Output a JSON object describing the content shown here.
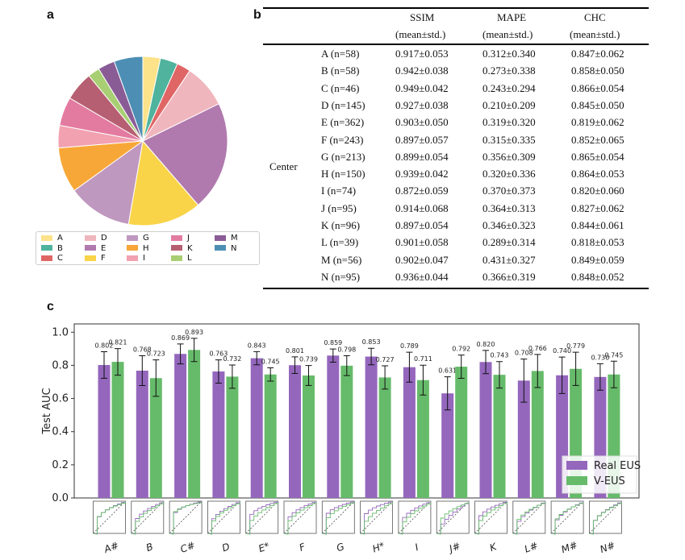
{
  "panels": {
    "a": "a",
    "b": "b",
    "c": "c"
  },
  "chart_data": [
    {
      "type": "pie",
      "panel": "a",
      "title": "",
      "categories": [
        "A",
        "B",
        "C",
        "D",
        "E",
        "F",
        "G",
        "H",
        "I",
        "J",
        "K",
        "L",
        "M",
        "N"
      ],
      "values": [
        58,
        58,
        46,
        145,
        362,
        243,
        213,
        150,
        74,
        95,
        96,
        39,
        56,
        95
      ],
      "colors": [
        "#fce38a",
        "#4fb39d",
        "#e06666",
        "#f0b6bd",
        "#b07aae",
        "#f9d448",
        "#bf98bf",
        "#f7a737",
        "#f2a1b0",
        "#e37ba0",
        "#b75f72",
        "#a8cf73",
        "#8a5c96",
        "#4d8fb4"
      ],
      "legend": "bottom"
    },
    {
      "type": "table",
      "panel": "b",
      "group_label": "Center",
      "columns": [
        "SSIM",
        "MAPE",
        "CHC"
      ],
      "subheader": "(mean±std.)",
      "rows": [
        {
          "center": "A (n=58)",
          "ssim": "0.917±0.053",
          "mape": "0.312±0.340",
          "chc": "0.847±0.062"
        },
        {
          "center": "B (n=58)",
          "ssim": "0.942±0.038",
          "mape": "0.273±0.338",
          "chc": "0.858±0.050"
        },
        {
          "center": "C (n=46)",
          "ssim": "0.949±0.042",
          "mape": "0.243±0.294",
          "chc": "0.866±0.054"
        },
        {
          "center": "D (n=145)",
          "ssim": "0.927±0.038",
          "mape": "0.210±0.209",
          "chc": "0.845±0.050"
        },
        {
          "center": "E (n=362)",
          "ssim": "0.903±0.050",
          "mape": "0.319±0.320",
          "chc": "0.819±0.062"
        },
        {
          "center": "F (n=243)",
          "ssim": "0.897±0.057",
          "mape": "0.315±0.335",
          "chc": "0.852±0.065"
        },
        {
          "center": "G (n=213)",
          "ssim": "0.899±0.054",
          "mape": "0.356±0.309",
          "chc": "0.865±0.054"
        },
        {
          "center": "H (n=150)",
          "ssim": "0.939±0.042",
          "mape": "0.320±0.336",
          "chc": "0.864±0.053"
        },
        {
          "center": "I (n=74)",
          "ssim": "0.872±0.059",
          "mape": "0.370±0.373",
          "chc": "0.820±0.060"
        },
        {
          "center": "J (n=95)",
          "ssim": "0.914±0.068",
          "mape": "0.364±0.313",
          "chc": "0.827±0.062"
        },
        {
          "center": "K (n=96)",
          "ssim": "0.897±0.054",
          "mape": "0.346±0.323",
          "chc": "0.844±0.061"
        },
        {
          "center": "L (n=39)",
          "ssim": "0.901±0.058",
          "mape": "0.289±0.314",
          "chc": "0.818±0.053"
        },
        {
          "center": "M (n=56)",
          "ssim": "0.902±0.047",
          "mape": "0.431±0.327",
          "chc": "0.849±0.059"
        },
        {
          "center": "N (n=95)",
          "ssim": "0.936±0.044",
          "mape": "0.366±0.319",
          "chc": "0.848±0.052"
        }
      ]
    },
    {
      "type": "bar",
      "panel": "c",
      "ylabel": "Test AUC",
      "xlabel": "",
      "ylim": [
        0,
        1.05
      ],
      "yticks": [
        "0.0",
        "0.2",
        "0.4",
        "0.6",
        "0.8",
        "1.0"
      ],
      "categories": [
        "A#",
        "B",
        "C#",
        "D",
        "E*",
        "F",
        "G",
        "H*",
        "I",
        "J#",
        "K",
        "L#",
        "M#",
        "N#"
      ],
      "series": [
        {
          "name": "Real EUS",
          "color": "#9467bd",
          "values": [
            0.802,
            0.768,
            0.869,
            0.763,
            0.843,
            0.801,
            0.859,
            0.853,
            0.789,
            0.631,
            0.82,
            0.708,
            0.74,
            0.73
          ],
          "labels": [
            "0.802",
            "0.768",
            "0.869",
            "0.763",
            "0.843",
            "0.801",
            "0.859",
            "0.853",
            "0.789",
            "0.631",
            "0.820",
            "0.708",
            "0.740",
            "0.730"
          ],
          "errors": [
            0.08,
            0.09,
            0.06,
            0.07,
            0.04,
            0.05,
            0.04,
            0.05,
            0.09,
            0.1,
            0.07,
            0.13,
            0.11,
            0.08
          ]
        },
        {
          "name": "V-EUS",
          "color": "#66bb6a",
          "values": [
            0.821,
            0.723,
            0.893,
            0.732,
            0.745,
            0.739,
            0.798,
            0.727,
            0.711,
            0.792,
            0.743,
            0.766,
            0.779,
            0.745
          ],
          "labels": [
            "0.821",
            "0.723",
            "0.893",
            "0.732",
            "0.745",
            "0.739",
            "0.798",
            "0.727",
            "0.711",
            "0.792",
            "0.743",
            "0.766",
            "0.779",
            "0.745"
          ],
          "errors": [
            0.08,
            0.11,
            0.07,
            0.07,
            0.04,
            0.06,
            0.06,
            0.07,
            0.09,
            0.07,
            0.08,
            0.1,
            0.1,
            0.08
          ]
        }
      ],
      "legend": "bottom-right"
    }
  ]
}
